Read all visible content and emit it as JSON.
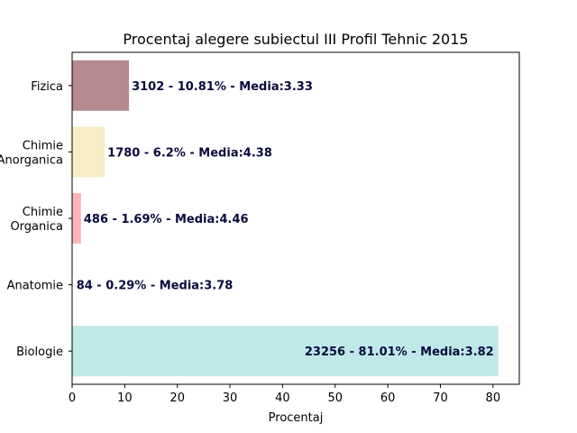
{
  "chart_data": {
    "type": "bar",
    "orientation": "horizontal",
    "title": "Procentaj alegere subiectul III Profil Tehnic 2015",
    "xlabel": "Procentaj",
    "ylabel": "",
    "xlim": [
      0,
      85
    ],
    "xticks": [
      "0",
      "10",
      "20",
      "30",
      "40",
      "50",
      "60",
      "70",
      "80"
    ],
    "grid": false,
    "categories": [
      {
        "lines": [
          "Fizica"
        ],
        "value": 10.81,
        "color": "#b48a8f",
        "label": "3102 - 10.81% - Media:3.33"
      },
      {
        "lines": [
          "Chimie",
          "Anorganica"
        ],
        "value": 6.2,
        "color": "#f6edc6",
        "label": "1780 - 6.2% - Media:4.38"
      },
      {
        "lines": [
          "Chimie",
          "Organica"
        ],
        "value": 1.69,
        "color": "#fdb6b8",
        "label": "486 - 1.69% - Media:4.46"
      },
      {
        "lines": [
          "Anatomie"
        ],
        "value": 0.29,
        "color": "#ffffff",
        "label": "84 - 0.29% - Media:3.78"
      },
      {
        "lines": [
          "Biologie"
        ],
        "value": 81.01,
        "color": "#bfe9e8",
        "label": "23256 - 81.01% - Media:3.82"
      }
    ]
  }
}
